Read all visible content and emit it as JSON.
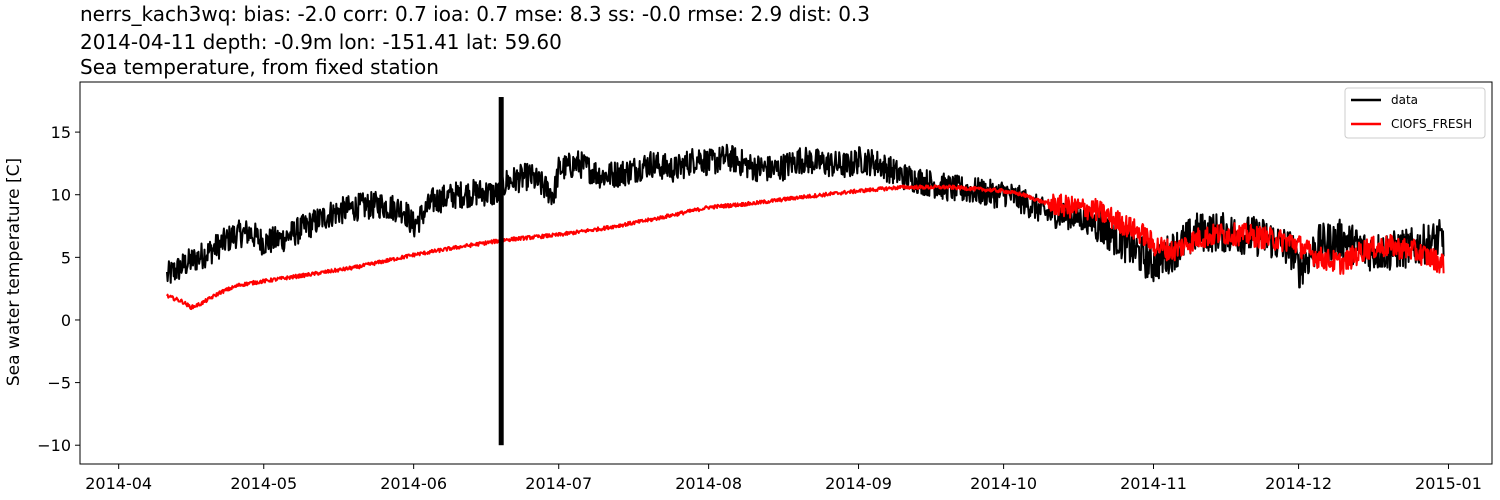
{
  "titles": {
    "line1": "nerrs_kach3wq: bias: -2.0  corr: 0.7  ioa: 0.7  mse: 8.3  ss: -0.0  rmse: 2.9  dist: 0.3",
    "line2": "2014-04-11 depth: -0.9m lon: -151.41 lat: 59.60",
    "line3": "Sea temperature, from fixed station"
  },
  "chart_data": {
    "type": "line",
    "ylabel": "Sea water temperature [C]",
    "xlabel": "",
    "xlim": [
      "2014-03-24",
      "2015-01-10"
    ],
    "ylim": [
      -11.5,
      19
    ],
    "x_ticks": [
      "2014-04",
      "2014-05",
      "2014-06",
      "2014-07",
      "2014-08",
      "2014-09",
      "2014-10",
      "2014-11",
      "2014-12",
      "2015-01"
    ],
    "x_tick_dates": [
      "2014-04-01",
      "2014-05-01",
      "2014-06-01",
      "2014-07-01",
      "2014-08-01",
      "2014-09-01",
      "2014-10-01",
      "2014-11-01",
      "2014-12-01",
      "2015-01-01"
    ],
    "y_ticks": [
      -10,
      -5,
      0,
      5,
      10,
      15
    ],
    "legend_position": "upper-right",
    "grid": false,
    "series": [
      {
        "name": "data",
        "color": "#000000",
        "x": [
          "2014-04-11",
          "2014-04-15",
          "2014-04-20",
          "2014-04-25",
          "2014-04-28",
          "2014-05-01",
          "2014-05-05",
          "2014-05-10",
          "2014-05-15",
          "2014-05-20",
          "2014-05-25",
          "2014-05-30",
          "2014-06-01",
          "2014-06-05",
          "2014-06-10",
          "2014-06-15",
          "2014-06-19",
          "2014-06-20",
          "2014-06-25",
          "2014-06-30",
          "2014-07-01",
          "2014-07-05",
          "2014-07-10",
          "2014-07-15",
          "2014-07-20",
          "2014-07-25",
          "2014-07-30",
          "2014-08-01",
          "2014-08-05",
          "2014-08-10",
          "2014-08-15",
          "2014-08-20",
          "2014-08-25",
          "2014-08-30",
          "2014-09-01",
          "2014-09-05",
          "2014-09-10",
          "2014-09-15",
          "2014-09-20",
          "2014-09-25",
          "2014-09-30",
          "2014-10-01",
          "2014-10-05",
          "2014-10-10",
          "2014-10-15",
          "2014-10-20",
          "2014-10-25",
          "2014-10-30",
          "2014-11-01",
          "2014-11-05",
          "2014-11-10",
          "2014-11-15",
          "2014-11-20",
          "2014-11-25",
          "2014-11-30",
          "2014-12-01",
          "2014-12-05",
          "2014-12-10",
          "2014-12-15",
          "2014-12-20",
          "2014-12-25",
          "2014-12-31"
        ],
        "y": [
          3.5,
          4.5,
          5.5,
          6.8,
          7.0,
          6.2,
          6.5,
          7.5,
          8.5,
          9.0,
          9.2,
          8.8,
          7.5,
          9.5,
          10.0,
          10.2,
          10.0,
          11.0,
          11.5,
          10.0,
          12.0,
          12.5,
          11.5,
          11.8,
          12.5,
          12.0,
          13.0,
          12.5,
          13.0,
          12.2,
          12.0,
          12.8,
          12.5,
          12.3,
          12.8,
          12.5,
          11.5,
          11.0,
          10.5,
          10.3,
          10.0,
          10.2,
          9.5,
          8.5,
          8.3,
          7.8,
          6.5,
          5.0,
          4.5,
          5.5,
          7.0,
          7.0,
          6.8,
          6.5,
          5.5,
          4.0,
          6.0,
          6.5,
          5.5,
          5.5,
          5.8,
          6.5
        ]
      },
      {
        "name": "CIOFS_FRESH",
        "color": "#ff0000",
        "x": [
          "2014-04-11",
          "2014-04-14",
          "2014-04-16",
          "2014-04-18",
          "2014-04-22",
          "2014-04-26",
          "2014-05-01",
          "2014-05-10",
          "2014-05-20",
          "2014-06-01",
          "2014-06-10",
          "2014-06-20",
          "2014-07-01",
          "2014-07-10",
          "2014-07-20",
          "2014-08-01",
          "2014-08-10",
          "2014-08-20",
          "2014-09-01",
          "2014-09-10",
          "2014-09-20",
          "2014-10-01",
          "2014-10-05",
          "2014-10-10",
          "2014-10-15",
          "2014-10-20",
          "2014-10-25",
          "2014-10-30",
          "2014-11-01",
          "2014-11-05",
          "2014-11-10",
          "2014-11-15",
          "2014-11-20",
          "2014-11-25",
          "2014-11-30",
          "2014-12-05",
          "2014-12-10",
          "2014-12-15",
          "2014-12-20",
          "2014-12-25",
          "2014-12-31"
        ],
        "y": [
          1.9,
          1.5,
          1.0,
          1.3,
          2.2,
          2.8,
          3.1,
          3.6,
          4.2,
          5.2,
          5.8,
          6.4,
          6.8,
          7.3,
          8.0,
          9.0,
          9.3,
          9.8,
          10.3,
          10.6,
          10.6,
          10.3,
          10.0,
          9.3,
          9.0,
          8.8,
          7.8,
          6.8,
          6.0,
          5.5,
          6.5,
          6.9,
          6.8,
          6.5,
          6.2,
          5.0,
          4.5,
          5.7,
          5.9,
          5.5,
          4.5
        ]
      }
    ],
    "annotations": {
      "spike": {
        "date": "2014-06-19",
        "min": -10.0,
        "max": 17.8
      }
    }
  }
}
